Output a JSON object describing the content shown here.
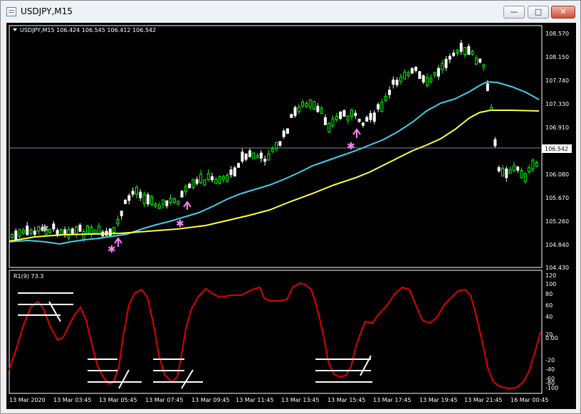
{
  "window": {
    "title": "USDJPY,M15",
    "buttons": [
      "minimize",
      "maximize",
      "close"
    ]
  },
  "chart_header": "USDJPY,M15  106.424 106.545 106.412 106.542",
  "price_axis": {
    "labels": [
      "108.570",
      "108.150",
      "107.740",
      "107.330",
      "106.910",
      "106.542",
      "106.080",
      "105.670",
      "105.260",
      "104.840",
      "104.430"
    ],
    "current_price": "106.542"
  },
  "indicator": {
    "label": "R1(9) 73.3",
    "axis_labels": [
      "120",
      "100",
      "80",
      "60",
      "40",
      "20",
      "0.00",
      "-20",
      "-40",
      "-60",
      "-80",
      "-100"
    ]
  },
  "time_axis": {
    "labels": [
      "13 Mar 2020",
      "13 Mar 03:45",
      "13 Mar 05:45",
      "13 Mar 07:45",
      "13 Mar 09:45",
      "13 Mar 11:45",
      "13 Mar 13:45",
      "13 Mar 15:45",
      "13 Mar 17:45",
      "13 Mar 19:45",
      "13 Mar 21:45",
      "16 Mar 00:45"
    ]
  },
  "colors": {
    "background": "#000000",
    "bull_candle": "#00ff00",
    "bear_candle": "#ffffff",
    "fast_ma": "#40d0e8",
    "slow_ma": "#ffff40",
    "oscillator": "#e00000",
    "signal_arrow": "#ff80ff",
    "star_marker": "#e080e0"
  },
  "markers": [
    {
      "type": "star",
      "color": "#c0c0c0"
    },
    {
      "type": "star",
      "color": "#ff80ff"
    },
    {
      "type": "star",
      "color": "#ff80ff"
    },
    {
      "type": "star",
      "color": "#ff80ff"
    },
    {
      "type": "up-arrow",
      "color": "#ff80ff"
    }
  ]
}
